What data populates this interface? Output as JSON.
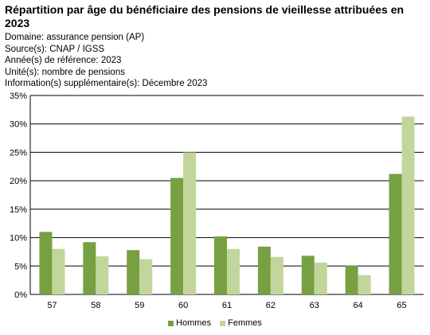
{
  "header": {
    "title": "Répartition par âge du bénéficiaire des pensions de vieillesse attribuées en 2023",
    "lines": [
      "Domaine: assurance pension (AP)",
      "Source(s): CNAP / IGSS",
      "Année(s) de référence: 2023",
      "Unité(s): nombre de pensions",
      "Information(s) supplémentaire(s): Décembre 2023"
    ]
  },
  "colors": {
    "hommes": "#77a043",
    "femmes": "#c2d69b",
    "grid": "#000000"
  },
  "chart_data": {
    "type": "bar",
    "categories": [
      "57",
      "58",
      "59",
      "60",
      "61",
      "62",
      "63",
      "64",
      "65"
    ],
    "series": [
      {
        "name": "Hommes",
        "values": [
          11.0,
          9.2,
          7.8,
          20.5,
          10.2,
          8.4,
          6.8,
          5.1,
          21.2
        ]
      },
      {
        "name": "Femmes",
        "values": [
          8.0,
          6.7,
          6.2,
          25.0,
          8.0,
          6.6,
          5.6,
          3.4,
          31.3
        ]
      }
    ],
    "ylim": [
      0,
      35
    ],
    "yticks": [
      "0%",
      "5%",
      "10%",
      "15%",
      "20%",
      "25%",
      "30%",
      "35%"
    ],
    "grid": true,
    "legend": "bottom"
  }
}
